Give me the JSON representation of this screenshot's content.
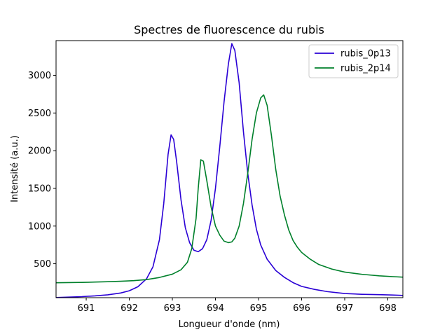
{
  "chart_data": {
    "type": "line",
    "title": "Spectres de fluorescence du rubis",
    "xlabel": "Longueur d'onde (nm)",
    "ylabel": "Intensité (a.u.)",
    "xlim": [
      690.3,
      698.35
    ],
    "ylim": [
      50,
      3460
    ],
    "xticks": [
      691,
      692,
      693,
      694,
      695,
      696,
      697,
      698
    ],
    "yticks": [
      500,
      1000,
      1500,
      2000,
      2500,
      3000
    ],
    "grid": false,
    "legend_position": "top-right",
    "series": [
      {
        "name": "rubis_0p13",
        "color": "#2a00d5",
        "points": [
          [
            690.3,
            52
          ],
          [
            690.6,
            58
          ],
          [
            690.9,
            64
          ],
          [
            691.2,
            74
          ],
          [
            691.5,
            88
          ],
          [
            691.8,
            112
          ],
          [
            692.0,
            142
          ],
          [
            692.2,
            195
          ],
          [
            692.4,
            300
          ],
          [
            692.55,
            460
          ],
          [
            692.7,
            820
          ],
          [
            692.8,
            1300
          ],
          [
            692.9,
            1950
          ],
          [
            692.97,
            2210
          ],
          [
            693.03,
            2150
          ],
          [
            693.1,
            1850
          ],
          [
            693.2,
            1350
          ],
          [
            693.3,
            980
          ],
          [
            693.4,
            780
          ],
          [
            693.5,
            680
          ],
          [
            693.6,
            660
          ],
          [
            693.7,
            700
          ],
          [
            693.8,
            820
          ],
          [
            693.9,
            1080
          ],
          [
            694.0,
            1500
          ],
          [
            694.1,
            2050
          ],
          [
            694.2,
            2650
          ],
          [
            694.3,
            3150
          ],
          [
            694.38,
            3420
          ],
          [
            694.45,
            3330
          ],
          [
            694.55,
            2900
          ],
          [
            694.65,
            2250
          ],
          [
            694.75,
            1700
          ],
          [
            694.85,
            1280
          ],
          [
            694.95,
            960
          ],
          [
            695.05,
            750
          ],
          [
            695.2,
            560
          ],
          [
            695.4,
            410
          ],
          [
            695.6,
            320
          ],
          [
            695.8,
            250
          ],
          [
            696.0,
            200
          ],
          [
            696.3,
            160
          ],
          [
            696.6,
            130
          ],
          [
            697.0,
            105
          ],
          [
            697.4,
            95
          ],
          [
            697.8,
            90
          ],
          [
            698.1,
            85
          ],
          [
            698.35,
            80
          ]
        ]
      },
      {
        "name": "rubis_2p14",
        "color": "#00802b",
        "points": [
          [
            690.3,
            248
          ],
          [
            690.6,
            250
          ],
          [
            690.9,
            253
          ],
          [
            691.2,
            257
          ],
          [
            691.5,
            262
          ],
          [
            691.8,
            268
          ],
          [
            692.1,
            276
          ],
          [
            692.4,
            290
          ],
          [
            692.7,
            318
          ],
          [
            693.0,
            362
          ],
          [
            693.2,
            420
          ],
          [
            693.35,
            520
          ],
          [
            693.45,
            700
          ],
          [
            693.55,
            1100
          ],
          [
            693.6,
            1500
          ],
          [
            693.66,
            1880
          ],
          [
            693.72,
            1860
          ],
          [
            693.8,
            1600
          ],
          [
            693.9,
            1250
          ],
          [
            694.0,
            1000
          ],
          [
            694.1,
            880
          ],
          [
            694.2,
            800
          ],
          [
            694.3,
            780
          ],
          [
            694.38,
            790
          ],
          [
            694.45,
            840
          ],
          [
            694.55,
            1000
          ],
          [
            694.65,
            1300
          ],
          [
            694.75,
            1700
          ],
          [
            694.85,
            2150
          ],
          [
            694.95,
            2500
          ],
          [
            695.05,
            2700
          ],
          [
            695.12,
            2740
          ],
          [
            695.2,
            2600
          ],
          [
            695.3,
            2200
          ],
          [
            695.4,
            1750
          ],
          [
            695.5,
            1400
          ],
          [
            695.6,
            1150
          ],
          [
            695.7,
            950
          ],
          [
            695.8,
            810
          ],
          [
            695.9,
            720
          ],
          [
            696.0,
            650
          ],
          [
            696.2,
            560
          ],
          [
            696.4,
            490
          ],
          [
            696.7,
            430
          ],
          [
            697.0,
            390
          ],
          [
            697.4,
            360
          ],
          [
            697.8,
            340
          ],
          [
            698.1,
            330
          ],
          [
            698.35,
            322
          ]
        ]
      }
    ]
  }
}
